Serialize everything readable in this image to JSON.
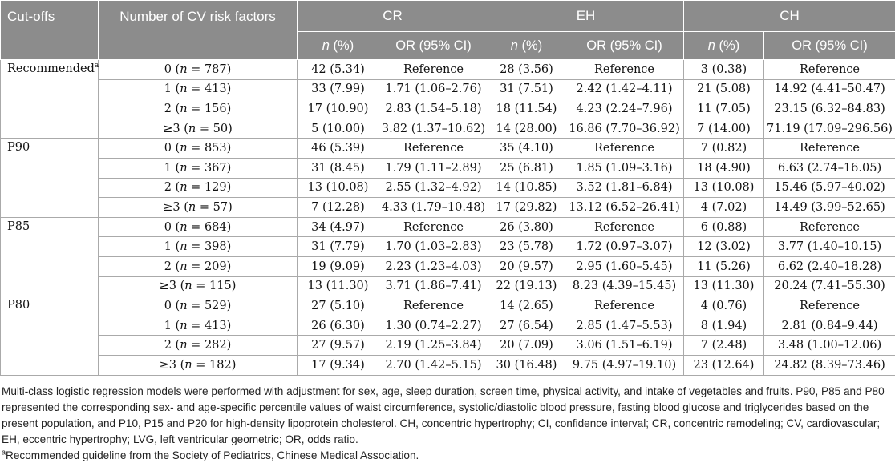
{
  "headers": {
    "cutoffs": "Cut-offs",
    "num_cv": "Number of CV risk factors",
    "groups": [
      "CR",
      "EH",
      "CH"
    ],
    "n_pct_italic": "n",
    "n_pct_rest": " (%)",
    "or_ci": "OR (95% CI)"
  },
  "blocks": [
    {
      "cutoff": "Recommended",
      "cutoff_sup": "a",
      "rows": [
        {
          "k": "0",
          "n": "787",
          "cr_n": "42 (5.34)",
          "cr_or": "Reference",
          "eh_n": "28 (3.56)",
          "eh_or": "Reference",
          "ch_n": "3 (0.38)",
          "ch_or": "Reference"
        },
        {
          "k": "1",
          "n": "413",
          "cr_n": "33 (7.99)",
          "cr_or": "1.71 (1.06–2.76)",
          "eh_n": "31 (7.51)",
          "eh_or": "2.42 (1.42–4.11)",
          "ch_n": "21 (5.08)",
          "ch_or": "14.92 (4.41–50.47)"
        },
        {
          "k": "2",
          "n": "156",
          "cr_n": "17 (10.90)",
          "cr_or": "2.83 (1.54–5.18)",
          "eh_n": "18 (11.54)",
          "eh_or": "4.23 (2.24–7.96)",
          "ch_n": "11 (7.05)",
          "ch_or": "23.15 (6.32–84.83)"
        },
        {
          "k": "≥3",
          "n": "50",
          "cr_n": "5 (10.00)",
          "cr_or": "3.82 (1.37–10.62)",
          "eh_n": "14 (28.00)",
          "eh_or": "16.86 (7.70–36.92)",
          "ch_n": "7 (14.00)",
          "ch_or": "71.19 (17.09–296.56)"
        }
      ]
    },
    {
      "cutoff": "P90",
      "cutoff_sup": "",
      "rows": [
        {
          "k": "0",
          "n": "853",
          "cr_n": "46 (5.39)",
          "cr_or": "Reference",
          "eh_n": "35 (4.10)",
          "eh_or": "Reference",
          "ch_n": "7 (0.82)",
          "ch_or": "Reference"
        },
        {
          "k": "1",
          "n": "367",
          "cr_n": "31 (8.45)",
          "cr_or": "1.79 (1.11–2.89)",
          "eh_n": "25 (6.81)",
          "eh_or": "1.85 (1.09–3.16)",
          "ch_n": "18 (4.90)",
          "ch_or": "6.63 (2.74–16.05)"
        },
        {
          "k": "2",
          "n": "129",
          "cr_n": "13 (10.08)",
          "cr_or": "2.55 (1.32–4.92)",
          "eh_n": "14 (10.85)",
          "eh_or": "3.52 (1.81–6.84)",
          "ch_n": "13 (10.08)",
          "ch_or": "15.46 (5.97–40.02)"
        },
        {
          "k": "≥3",
          "n": "57",
          "cr_n": "7 (12.28)",
          "cr_or": "4.33 (1.79–10.48)",
          "eh_n": "17 (29.82)",
          "eh_or": "13.12 (6.52–26.41)",
          "ch_n": "4 (7.02)",
          "ch_or": "14.49 (3.99–52.65)"
        }
      ]
    },
    {
      "cutoff": "P85",
      "cutoff_sup": "",
      "rows": [
        {
          "k": "0",
          "n": "684",
          "cr_n": "34 (4.97)",
          "cr_or": "Reference",
          "eh_n": "26 (3.80)",
          "eh_or": "Reference",
          "ch_n": "6 (0.88)",
          "ch_or": "Reference"
        },
        {
          "k": "1",
          "n": "398",
          "cr_n": "31 (7.79)",
          "cr_or": "1.70 (1.03–2.83)",
          "eh_n": "23 (5.78)",
          "eh_or": "1.72 (0.97–3.07)",
          "ch_n": "12 (3.02)",
          "ch_or": "3.77 (1.40–10.15)"
        },
        {
          "k": "2",
          "n": "209",
          "cr_n": "19 (9.09)",
          "cr_or": "2.23 (1.23–4.03)",
          "eh_n": "20 (9.57)",
          "eh_or": "2.95 (1.60–5.45)",
          "ch_n": "11 (5.26)",
          "ch_or": "6.62 (2.40–18.28)"
        },
        {
          "k": "≥3",
          "n": "115",
          "cr_n": "13 (11.30)",
          "cr_or": "3.71 (1.86–7.41)",
          "eh_n": "22 (19.13)",
          "eh_or": "8.23 (4.39–15.45)",
          "ch_n": "13 (11.30)",
          "ch_or": "20.24 (7.41–55.30)"
        }
      ]
    },
    {
      "cutoff": "P80",
      "cutoff_sup": "",
      "rows": [
        {
          "k": "0",
          "n": "529",
          "cr_n": "27 (5.10)",
          "cr_or": "Reference",
          "eh_n": "14 (2.65)",
          "eh_or": "Reference",
          "ch_n": "4 (0.76)",
          "ch_or": "Reference"
        },
        {
          "k": "1",
          "n": "413",
          "cr_n": "26 (6.30)",
          "cr_or": "1.30 (0.74–2.27)",
          "eh_n": "27 (6.54)",
          "eh_or": "2.85 (1.47–5.53)",
          "ch_n": "8 (1.94)",
          "ch_or": "2.81 (0.84–9.44)"
        },
        {
          "k": "2",
          "n": "282",
          "cr_n": "27 (9.57)",
          "cr_or": "2.19 (1.25–3.84)",
          "eh_n": "20 (7.09)",
          "eh_or": "3.06 (1.51–6.19)",
          "ch_n": "7 (2.48)",
          "ch_or": "3.48 (1.00–12.06)"
        },
        {
          "k": "≥3",
          "n": "182",
          "cr_n": "17 (9.34)",
          "cr_or": "2.70 (1.42–5.15)",
          "eh_n": "30 (16.48)",
          "eh_or": "9.75 (4.97–19.10)",
          "ch_n": "23 (12.64)",
          "ch_or": "24.82 (8.39–73.46)"
        }
      ]
    }
  ],
  "notes": {
    "main": "Multi-class logistic regression models were performed with adjustment for sex, age, sleep duration, screen time, physical activity, and intake of vegetables and fruits. P90, P85 and P80 represented the corresponding sex- and age-specific percentile values of waist circumference, systolic/diastolic blood pressure, fasting blood glucose and triglycerides based on the present population, and P10, P15 and P20 for high-density lipoprotein cholesterol. CH, concentric hypertrophy; CI, confidence interval; CR, concentric remodeling; CV, cardiovascular; EH, eccentric hypertrophy; LVG, left ventricular geometric; OR, odds ratio.",
    "footnote_mark": "a",
    "footnote": "Recommended guideline from the Society of Pediatrics, Chinese Medical Association."
  }
}
